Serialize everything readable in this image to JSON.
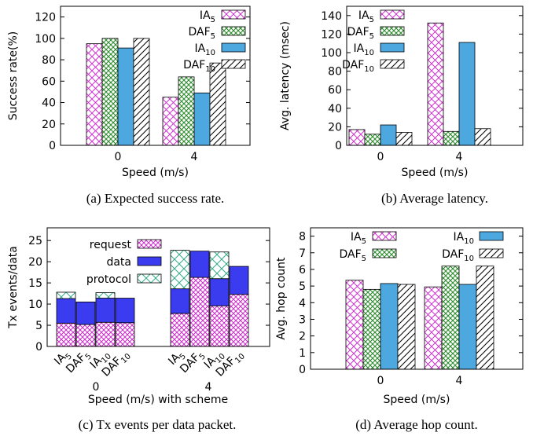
{
  "colors": {
    "ia5": "#cc33cc",
    "daf5": "#2d8a2d",
    "ia10": "#4ea8e0",
    "daf10": "#000000",
    "request": "#cc33cc",
    "data": "#3b3bf0",
    "protocol": "#33aa88"
  },
  "chart_data": [
    {
      "id": "a",
      "type": "bar",
      "caption": "(a) Expected success rate.",
      "xlabel": "Speed (m/s)",
      "ylabel": "Success rate(%)",
      "ylim": [
        0,
        130
      ],
      "yticks": [
        0,
        20,
        40,
        60,
        80,
        100,
        120
      ],
      "categories": [
        "0",
        "4"
      ],
      "series": [
        {
          "name": "IA",
          "sub": "5",
          "style": "ia5",
          "values": [
            95,
            45
          ]
        },
        {
          "name": "DAF",
          "sub": "5",
          "style": "daf5",
          "values": [
            100,
            64
          ]
        },
        {
          "name": "IA",
          "sub": "10",
          "style": "ia10",
          "values": [
            91,
            49
          ]
        },
        {
          "name": "DAF",
          "sub": "10",
          "style": "daf10",
          "values": [
            100,
            77
          ]
        }
      ]
    },
    {
      "id": "b",
      "type": "bar",
      "caption": "(b) Average latency.",
      "xlabel": "Speed (m/s)",
      "ylabel": "Avg. latency (msec)",
      "ylim": [
        0,
        150
      ],
      "yticks": [
        0,
        20,
        40,
        60,
        80,
        100,
        120,
        140
      ],
      "categories": [
        "0",
        "4"
      ],
      "series": [
        {
          "name": "IA",
          "sub": "5",
          "style": "ia5",
          "values": [
            17,
            132
          ]
        },
        {
          "name": "DAF",
          "sub": "5",
          "style": "daf5",
          "values": [
            12,
            15
          ]
        },
        {
          "name": "IA",
          "sub": "10",
          "style": "ia10",
          "values": [
            22,
            111
          ]
        },
        {
          "name": "DAF",
          "sub": "10",
          "style": "daf10",
          "values": [
            14,
            18
          ]
        }
      ]
    },
    {
      "id": "c",
      "type": "stacked-bar",
      "caption": "(c) Tx events per data packet.",
      "xlabel": "Speed (m/s) with scheme",
      "ylabel": "Tx events/data",
      "ylim": [
        0,
        28
      ],
      "yticks": [
        0,
        5,
        10,
        15,
        20,
        25
      ],
      "groups": [
        "0",
        "4"
      ],
      "scheme_labels": [
        {
          "name": "IA",
          "sub": "5"
        },
        {
          "name": "DAF",
          "sub": "5"
        },
        {
          "name": "IA",
          "sub": "10"
        },
        {
          "name": "DAF",
          "sub": "10"
        }
      ],
      "components": [
        {
          "name": "request",
          "style": "request"
        },
        {
          "name": "data",
          "style": "data"
        },
        {
          "name": "protocol",
          "style": "protocol"
        }
      ],
      "stacks": [
        [
          [
            5.5,
            5.8,
            1.5
          ],
          [
            5.2,
            5.3,
            0.0
          ],
          [
            5.7,
            5.7,
            1.3
          ],
          [
            5.6,
            5.8,
            0.0
          ]
        ],
        [
          [
            7.8,
            5.8,
            9.1
          ],
          [
            16.3,
            6.2,
            0.0
          ],
          [
            9.6,
            6.4,
            6.3
          ],
          [
            12.3,
            6.6,
            0.0
          ]
        ]
      ]
    },
    {
      "id": "d",
      "type": "bar",
      "caption": "(d) Average hop count.",
      "xlabel": "Speed (m/s)",
      "ylabel": "Avg. hop count",
      "ylim": [
        0,
        8.5
      ],
      "yticks": [
        0,
        1,
        2,
        3,
        4,
        5,
        6,
        7,
        8
      ],
      "categories": [
        "0",
        "4"
      ],
      "series": [
        {
          "name": "IA",
          "sub": "5",
          "style": "ia5",
          "values": [
            5.35,
            4.95
          ]
        },
        {
          "name": "DAF",
          "sub": "5",
          "style": "daf5",
          "values": [
            4.8,
            6.2
          ]
        },
        {
          "name": "IA",
          "sub": "10",
          "style": "ia10",
          "values": [
            5.15,
            5.1
          ]
        },
        {
          "name": "DAF",
          "sub": "10",
          "style": "daf10",
          "values": [
            5.1,
            6.2
          ]
        }
      ]
    }
  ]
}
